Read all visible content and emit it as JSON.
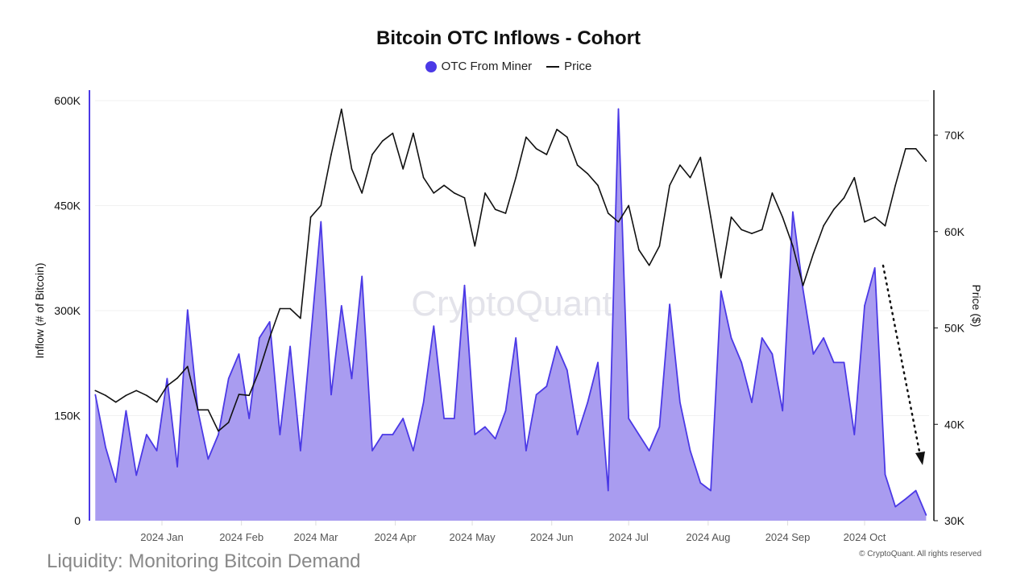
{
  "chart_data": {
    "type": "area+line",
    "title": "Bitcoin OTC Inflows - Cohort",
    "legend": {
      "placement": "top-center",
      "items": [
        "OTC From Miner",
        "Price"
      ]
    },
    "ylabel_left": "Inflow (# of Bitcoin)",
    "ylabel_right": "Price ($)",
    "ylim_left": [
      0,
      600000
    ],
    "ylim_right": [
      30000,
      75000
    ],
    "yticks_left": [
      "0",
      "150K",
      "300K",
      "450K",
      "600K"
    ],
    "yticks_right": [
      "30K",
      "40K",
      "50K",
      "60K",
      "70K"
    ],
    "xticks": [
      "2024 Jan",
      "2024 Feb",
      "2024 Mar",
      "2024 Apr",
      "2024 May",
      "2024 Jun",
      "2024 Jul",
      "2024 Aug",
      "2024 Sep",
      "2024 Oct"
    ],
    "grid": true,
    "colors": {
      "inflow_line": "#4b39e6",
      "inflow_fill": "#a99cf0",
      "price": "#111111"
    },
    "x": [
      "2023-12-06",
      "2023-12-10",
      "2023-12-14",
      "2023-12-18",
      "2023-12-22",
      "2023-12-26",
      "2023-12-30",
      "2024-01-03",
      "2024-01-07",
      "2024-01-11",
      "2024-01-15",
      "2024-01-19",
      "2024-01-23",
      "2024-01-27",
      "2024-01-31",
      "2024-02-04",
      "2024-02-08",
      "2024-02-12",
      "2024-02-16",
      "2024-02-20",
      "2024-02-24",
      "2024-02-28",
      "2024-03-03",
      "2024-03-07",
      "2024-03-11",
      "2024-03-15",
      "2024-03-19",
      "2024-03-23",
      "2024-03-27",
      "2024-03-31",
      "2024-04-04",
      "2024-04-08",
      "2024-04-12",
      "2024-04-16",
      "2024-04-20",
      "2024-04-24",
      "2024-04-28",
      "2024-05-02",
      "2024-05-06",
      "2024-05-10",
      "2024-05-14",
      "2024-05-18",
      "2024-05-22",
      "2024-05-26",
      "2024-05-30",
      "2024-06-03",
      "2024-06-07",
      "2024-06-11",
      "2024-06-15",
      "2024-06-19",
      "2024-06-23",
      "2024-06-27",
      "2024-07-01",
      "2024-07-05",
      "2024-07-09",
      "2024-07-13",
      "2024-07-17",
      "2024-07-21",
      "2024-07-25",
      "2024-07-29",
      "2024-08-02",
      "2024-08-06",
      "2024-08-10",
      "2024-08-14",
      "2024-08-18",
      "2024-08-22",
      "2024-08-26",
      "2024-08-30",
      "2024-09-03",
      "2024-09-07",
      "2024-09-11",
      "2024-09-15",
      "2024-09-19",
      "2024-09-23",
      "2024-09-27",
      "2024-10-01",
      "2024-10-05",
      "2024-10-09",
      "2024-10-13",
      "2024-10-17",
      "2024-10-21",
      "2024-10-25"
    ],
    "series": [
      {
        "name": "OTC From Miner",
        "axis": "left",
        "type": "area",
        "values": [
          180000,
          105000,
          55000,
          157000,
          65000,
          123000,
          100000,
          203000,
          77000,
          301000,
          157000,
          88000,
          123000,
          203000,
          238000,
          146000,
          261000,
          284000,
          123000,
          249000,
          100000,
          261000,
          427000,
          180000,
          307000,
          203000,
          349000,
          100000,
          123000,
          123000,
          146000,
          100000,
          169000,
          278000,
          146000,
          146000,
          336000,
          123000,
          134000,
          117000,
          157000,
          261000,
          100000,
          180000,
          192000,
          249000,
          215000,
          123000,
          169000,
          226000,
          43000,
          588000,
          146000,
          123000,
          100000,
          134000,
          309000,
          169000,
          100000,
          54000,
          43000,
          328000,
          261000,
          226000,
          169000,
          261000,
          238000,
          157000,
          441000,
          330000,
          238000,
          261000,
          226000,
          226000,
          123000,
          307000,
          361000,
          66000,
          20000,
          31000,
          43000,
          8000
        ]
      },
      {
        "name": "Price",
        "axis": "right",
        "type": "line",
        "values": [
          43500,
          43000,
          42300,
          43000,
          43500,
          43000,
          42300,
          44000,
          44800,
          46000,
          41500,
          41500,
          39300,
          40200,
          43100,
          43000,
          45600,
          49000,
          52000,
          52000,
          51000,
          61500,
          62700,
          68000,
          72700,
          66500,
          64000,
          68000,
          69400,
          70200,
          66500,
          70200,
          65600,
          64000,
          64800,
          64000,
          63500,
          58500,
          64000,
          62300,
          61900,
          65600,
          69800,
          68600,
          68000,
          70600,
          69800,
          66900,
          66000,
          64800,
          61900,
          61000,
          62700,
          58100,
          56500,
          58500,
          64800,
          66900,
          65600,
          67700,
          61500,
          55200,
          61500,
          60200,
          59800,
          60200,
          64000,
          61500,
          58500,
          54400,
          57700,
          60600,
          62300,
          63500,
          65600,
          61000,
          61500,
          60600,
          64800,
          68600,
          68600,
          67300
        ]
      }
    ]
  },
  "watermark": "CryptoQuant",
  "footer_left": "Liquidity: Monitoring Bitcoin Demand",
  "copyright": "© CryptoQuant. All rights reserved"
}
